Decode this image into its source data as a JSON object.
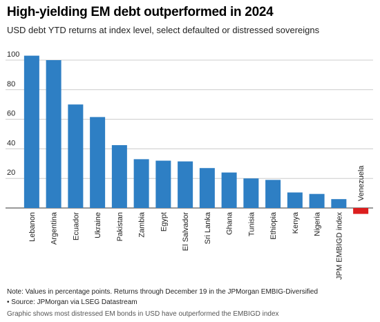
{
  "header": {
    "title": "High-yielding EM debt outperformed in 2024",
    "subtitle": "USD debt YTD returns at index level, select defaulted or distressed sovereigns"
  },
  "footer": {
    "note": "Note: Values in percentage points. Returns through December 19 in the JPMorgan EMBIG-Diversified",
    "source": "• Source: JPMorgan via LSEG Datastream",
    "caption": "Graphic shows most distressed EM bonds in USD have outperformed the EMBIGD index"
  },
  "colors": {
    "positive": "#2e7fc4",
    "negative": "#dc1e1e",
    "grid": "#cccccc",
    "axis": "#333333"
  },
  "chart_data": {
    "type": "bar",
    "categories": [
      "Lebanon",
      "Argentina",
      "Ecuador",
      "Ukraine",
      "Pakistan",
      "Zambia",
      "Egypt",
      "El Salvador",
      "Sri Lanka",
      "Ghana",
      "Tunisia",
      "Ethiopia",
      "Kenya",
      "Nigeria",
      "JPM EMBIGD index",
      "Venezuela"
    ],
    "values": [
      103,
      100,
      70,
      61.5,
      42.5,
      33,
      32,
      31.5,
      27,
      24,
      20,
      19,
      10.5,
      9.5,
      6,
      -4
    ],
    "yticks": [
      20,
      40,
      60,
      80,
      100
    ],
    "ylim": [
      -8,
      110
    ],
    "grid": true,
    "legend": "none"
  }
}
